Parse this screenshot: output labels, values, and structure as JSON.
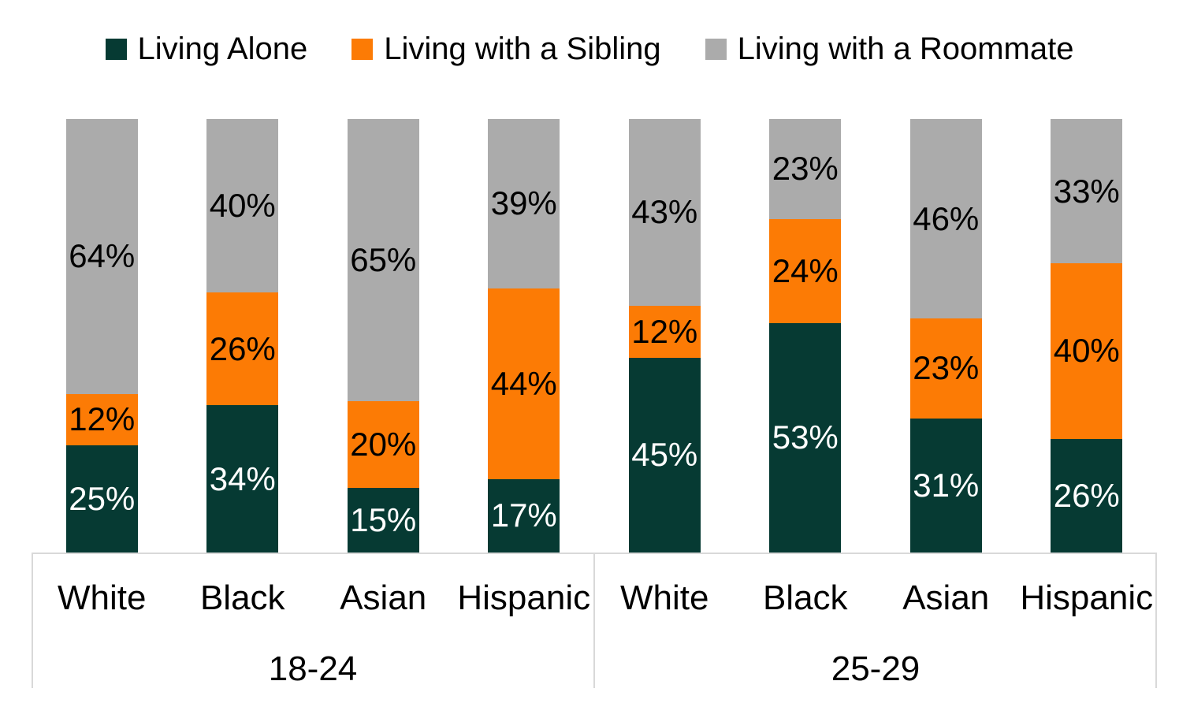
{
  "legend": {
    "items": [
      {
        "label": "Living Alone",
        "color": "#063a33",
        "icon": "legend-swatch-living-alone"
      },
      {
        "label": "Living with a Sibling",
        "color": "#fc7b05",
        "icon": "legend-swatch-living-with-a-sibling"
      },
      {
        "label": "Living with a Roommate",
        "color": "#ababab",
        "icon": "legend-swatch-living-with-a-roommate"
      }
    ]
  },
  "chart_data": {
    "type": "bar",
    "stacked": true,
    "percent_stacked": true,
    "title": "",
    "xlabel": "",
    "ylabel": "",
    "ylim": [
      0,
      100
    ],
    "grid": false,
    "legend_position": "top",
    "value_suffix": "%",
    "groups": [
      {
        "label": "18-24",
        "categories": [
          "White",
          "Black",
          "Asian",
          "Hispanic"
        ]
      },
      {
        "label": "25-29",
        "categories": [
          "White",
          "Black",
          "Asian",
          "Hispanic"
        ]
      }
    ],
    "categories": [
      "White",
      "Black",
      "Asian",
      "Hispanic",
      "White",
      "Black",
      "Asian",
      "Hispanic"
    ],
    "series": [
      {
        "name": "Living Alone",
        "color": "#063a33",
        "label_color": "#ffffff",
        "values": [
          25,
          34,
          15,
          17,
          45,
          53,
          31,
          26
        ]
      },
      {
        "name": "Living with a Sibling",
        "color": "#fc7b05",
        "label_color": "#000000",
        "values": [
          12,
          26,
          20,
          44,
          12,
          24,
          23,
          40
        ]
      },
      {
        "name": "Living with a Roommate",
        "color": "#ababab",
        "label_color": "#000000",
        "values": [
          64,
          40,
          65,
          39,
          43,
          23,
          46,
          33
        ]
      }
    ]
  },
  "layout_colors": {
    "axis_frame": "#d9d9d9",
    "background": "#ffffff"
  }
}
